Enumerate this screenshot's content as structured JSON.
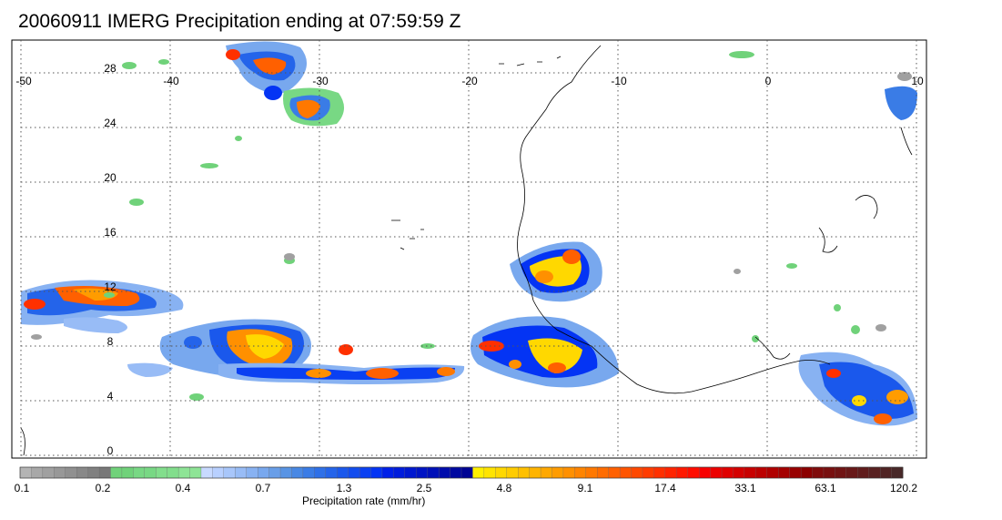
{
  "title": "20060911 IMERG Precipitation ending at 07:59:59 Z",
  "map": {
    "lon_labels": [
      "-50",
      "-40",
      "-30",
      "-20",
      "-10",
      "0",
      "10"
    ],
    "lat_labels": [
      "28",
      "24",
      "20",
      "16",
      "12",
      "8",
      "4",
      "0"
    ],
    "lon_range": [
      -50,
      10
    ],
    "lat_range": [
      -0.5,
      30
    ],
    "grid": "dotted"
  },
  "colorbar": {
    "label": "Precipitation rate (mm/hr)",
    "tick_labels": [
      "0.1",
      "0.2",
      "0.4",
      "0.7",
      "1.3",
      "2.5",
      "4.8",
      "9.1",
      "17.4",
      "33.1",
      "63.1",
      "120.2"
    ],
    "colors": [
      "#b4b4b4",
      "#a8a8a8",
      "#a0a0a0",
      "#989898",
      "#909090",
      "#888888",
      "#808080",
      "#787878",
      "#70d27a",
      "#70d27a",
      "#78d884",
      "#78d884",
      "#82de8c",
      "#82de8c",
      "#8ee496",
      "#8ee496",
      "#c8daff",
      "#b8d0ff",
      "#a8c6fa",
      "#98bcf6",
      "#88b2f2",
      "#78a8ee",
      "#689ee8",
      "#5894e4",
      "#4888e4",
      "#3a7ce6",
      "#2e70e8",
      "#2464ea",
      "#1a58ec",
      "#124cee",
      "#0a40f2",
      "#0434f4",
      "#0020e8",
      "#001cdc",
      "#0018d0",
      "#0014c4",
      "#0010b8",
      "#000cac",
      "#0008a0",
      "#000494",
      "#fff000",
      "#ffe400",
      "#ffd800",
      "#ffcc00",
      "#ffc000",
      "#ffb400",
      "#ffa800",
      "#ff9c00",
      "#ff9000",
      "#ff8400",
      "#ff7800",
      "#ff6c00",
      "#ff6000",
      "#ff5400",
      "#ff4800",
      "#ff3c00",
      "#ff3000",
      "#ff2400",
      "#ff1800",
      "#ff0c00",
      "#f80000",
      "#ec0000",
      "#e00000",
      "#d40000",
      "#c80000",
      "#bc0000",
      "#b00000",
      "#a40000",
      "#980000",
      "#8c0000",
      "#800c0c",
      "#781010",
      "#701414",
      "#681818",
      "#601c1c",
      "#582020",
      "#502424",
      "#482828"
    ]
  }
}
